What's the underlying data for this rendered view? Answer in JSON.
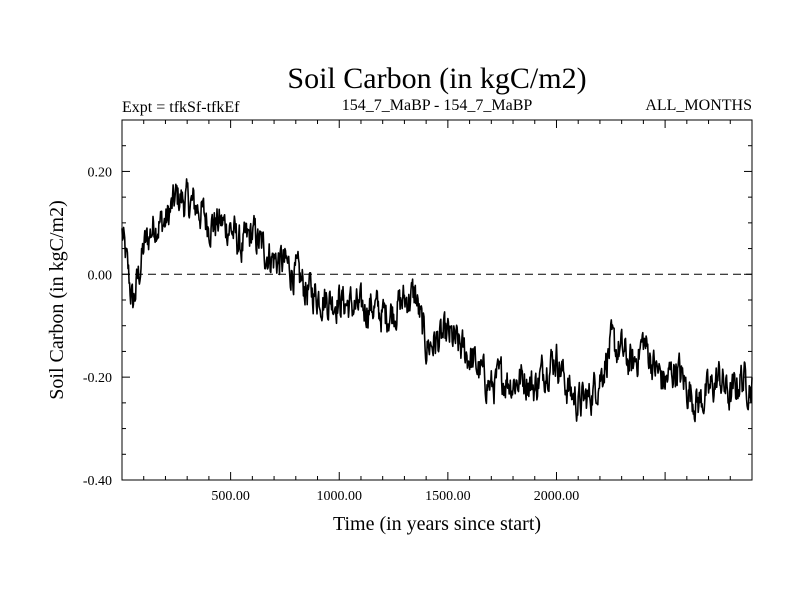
{
  "chart_data": {
    "type": "line",
    "title": "Soil Carbon (in kgC/m2)",
    "subtitle_left": "Expt = tfkSf-tfkEf",
    "subtitle_center": "154_7_MaBP - 154_7_MaBP",
    "subtitle_right": "ALL_MONTHS",
    "xlabel": "Time (in years since start)",
    "ylabel": "Soil Carbon (in kgC/m2)",
    "xlim": [
      0,
      2900
    ],
    "ylim": [
      -0.4,
      0.3
    ],
    "x_ticks": [
      500,
      1000,
      1500,
      2000
    ],
    "x_tick_labels": [
      "500.00",
      "1000.00",
      "1500.00",
      "2000.00"
    ],
    "y_ticks": [
      0.2,
      0.0,
      -0.2,
      -0.4
    ],
    "y_tick_labels": [
      "0.20",
      "0.00",
      "-0.20",
      "-0.40"
    ],
    "reference_line": {
      "y": 0.0,
      "style": "dashed"
    },
    "series": [
      {
        "name": "Soil Carbon",
        "x": [
          0,
          50,
          100,
          150,
          200,
          250,
          300,
          350,
          400,
          450,
          500,
          550,
          600,
          650,
          700,
          750,
          800,
          850,
          900,
          950,
          1000,
          1050,
          1100,
          1150,
          1200,
          1250,
          1300,
          1350,
          1400,
          1450,
          1500,
          1550,
          1600,
          1650,
          1700,
          1750,
          1800,
          1850,
          1900,
          1950,
          2000,
          2050,
          2100,
          2150,
          2200,
          2250,
          2300,
          2350,
          2400,
          2450,
          2500,
          2550,
          2600,
          2650,
          2700,
          2750,
          2800,
          2850,
          2900
        ],
        "y": [
          0.08,
          -0.06,
          0.05,
          0.1,
          0.1,
          0.15,
          0.14,
          0.13,
          0.1,
          0.1,
          0.09,
          0.05,
          0.08,
          0.05,
          0.03,
          0.02,
          0.0,
          -0.03,
          -0.04,
          -0.05,
          -0.05,
          -0.06,
          -0.07,
          -0.06,
          -0.08,
          -0.07,
          -0.05,
          -0.04,
          -0.14,
          -0.13,
          -0.12,
          -0.14,
          -0.16,
          -0.19,
          -0.22,
          -0.2,
          -0.21,
          -0.2,
          -0.22,
          -0.18,
          -0.16,
          -0.22,
          -0.25,
          -0.24,
          -0.2,
          -0.14,
          -0.15,
          -0.18,
          -0.13,
          -0.18,
          -0.21,
          -0.18,
          -0.22,
          -0.25,
          -0.23,
          -0.2,
          -0.24,
          -0.2,
          -0.22
        ]
      }
    ]
  }
}
